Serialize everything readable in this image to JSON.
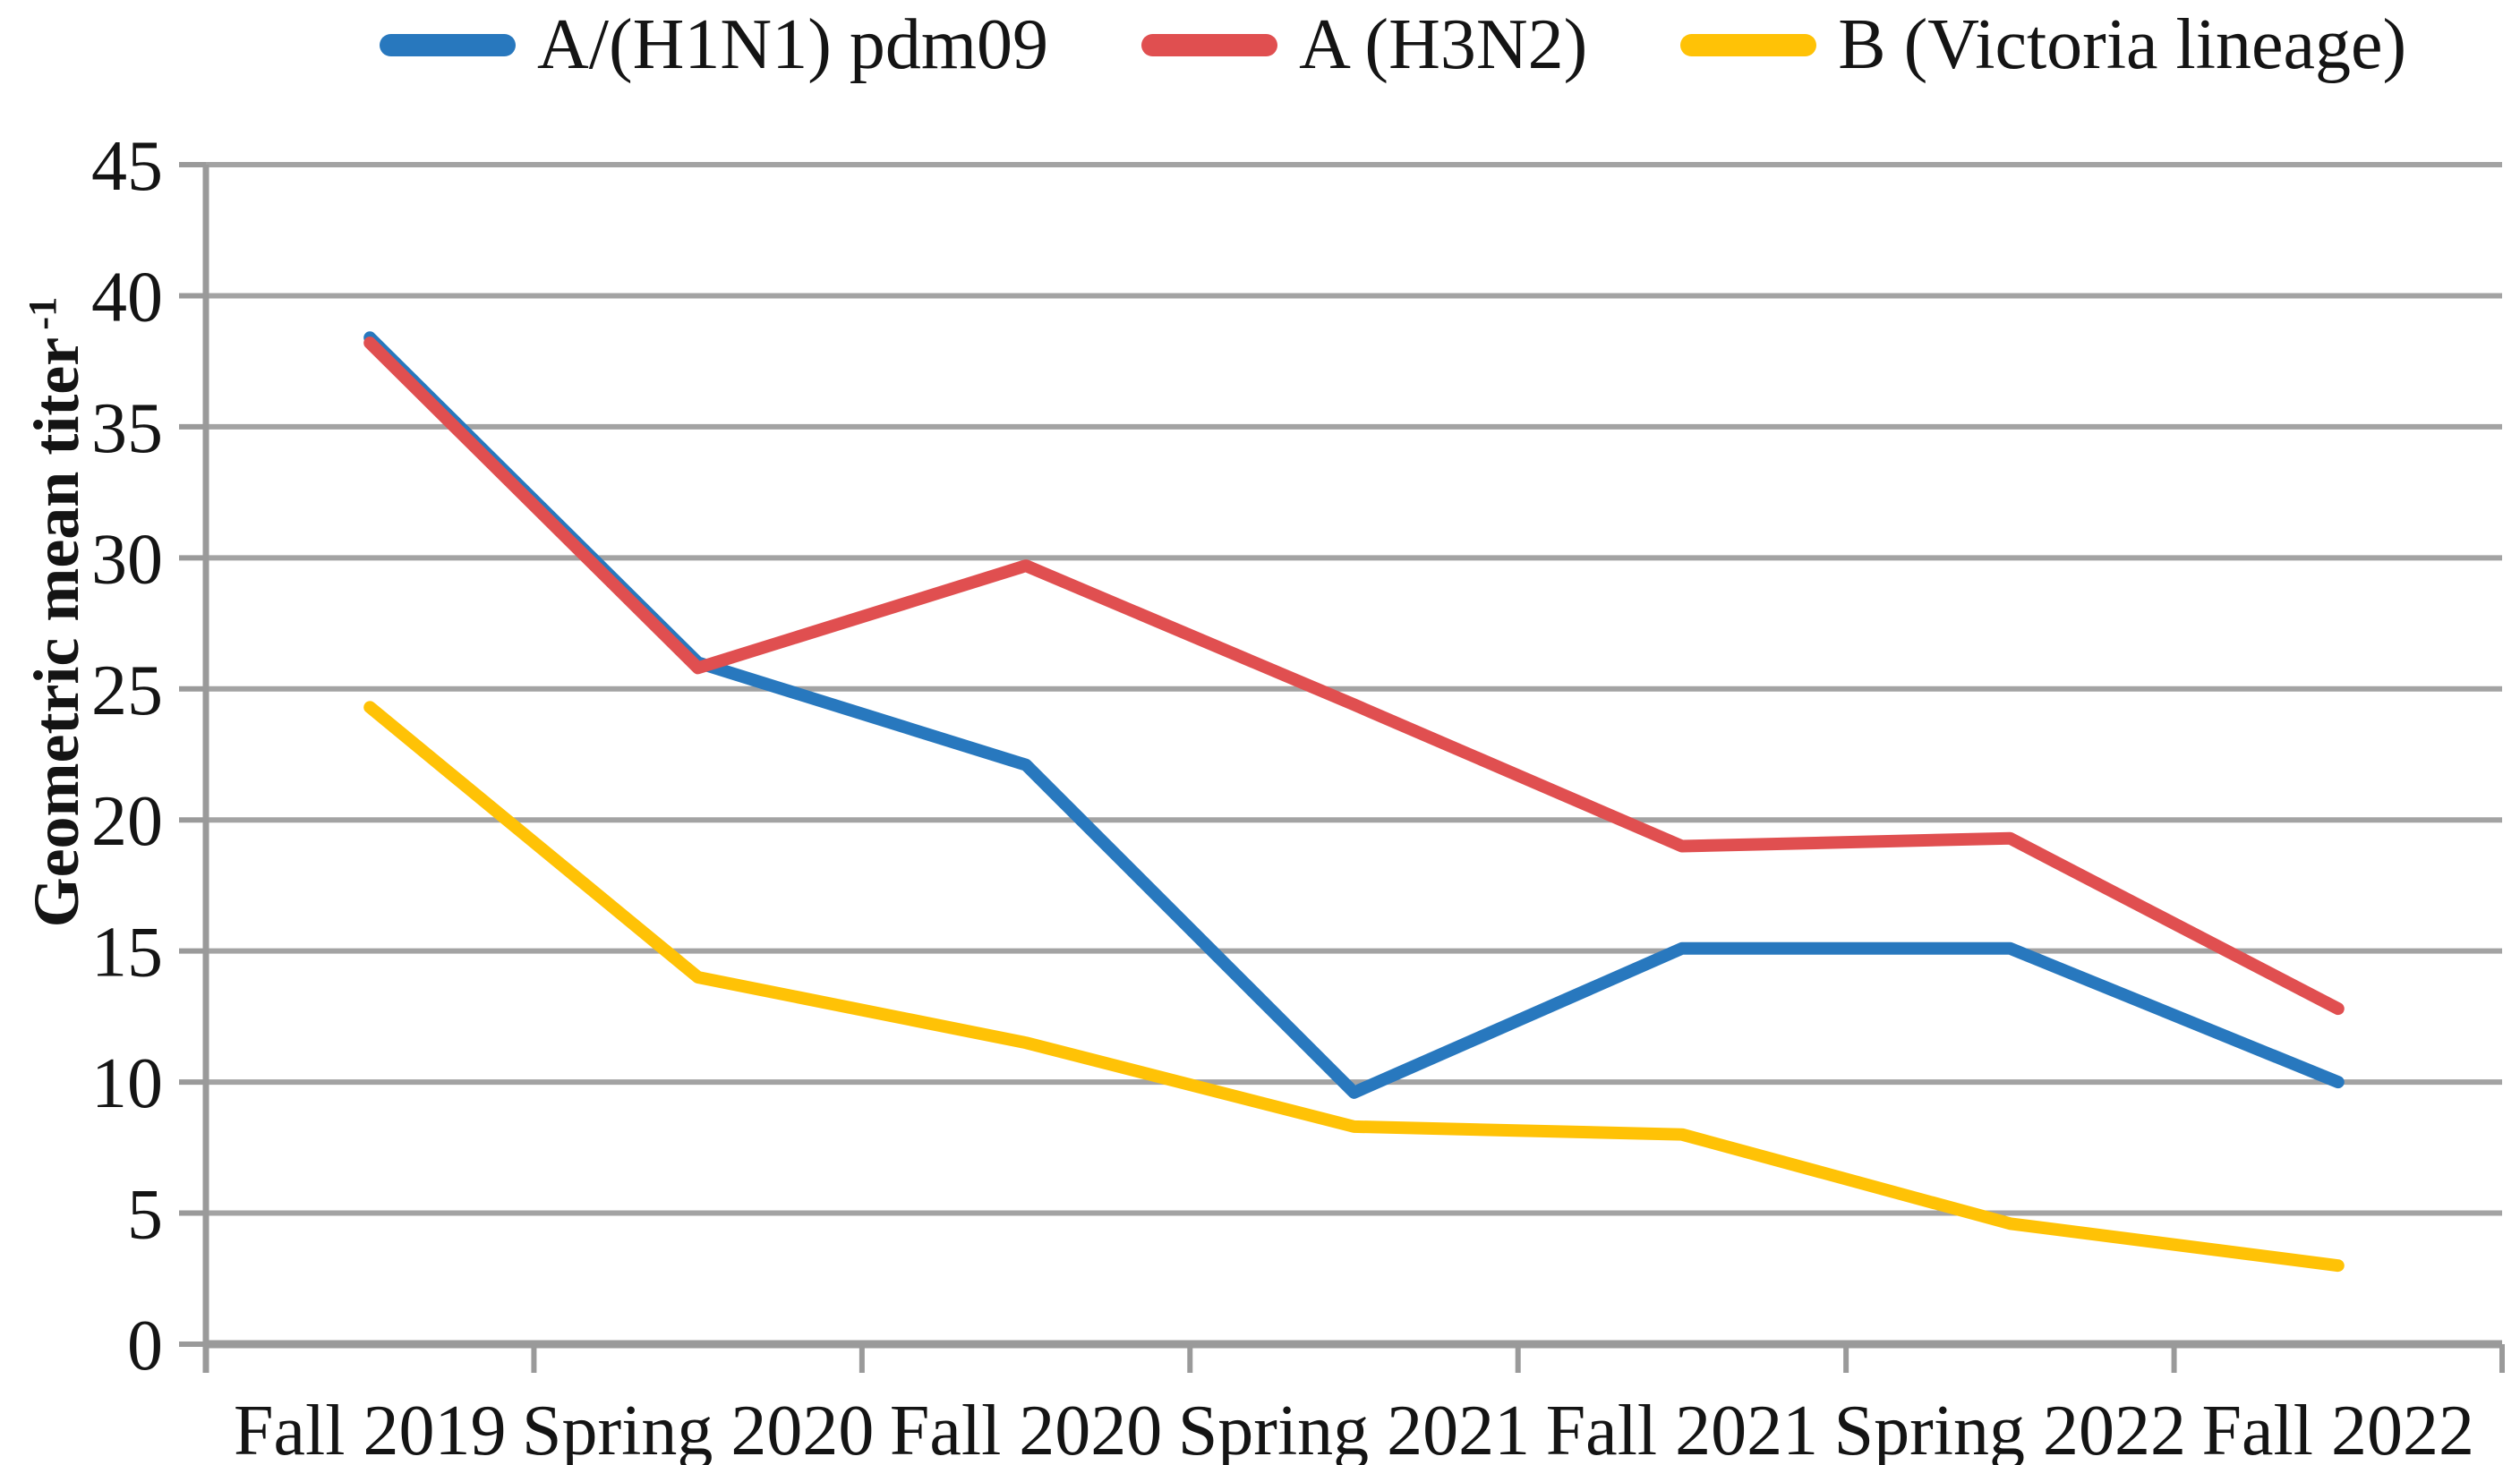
{
  "figure": {
    "background": "#ffffff",
    "legend_items": [
      "A/(H1N1) pdm09",
      "A (H3N2)",
      "B (Victoria lineage)"
    ]
  },
  "chart_data": {
    "type": "line",
    "title": "",
    "categories": [
      "Fall 2019",
      "Spring 2020",
      "Fall 2020",
      "Spring 2021",
      "Fall 2021",
      "Spring 2022",
      "Fall 2022"
    ],
    "series": [
      {
        "name": "A/(H1N1) pdm09",
        "color": "#2878BE",
        "values": [
          38.4,
          26.0,
          22.1,
          9.6,
          15.1,
          15.1,
          10.0
        ]
      },
      {
        "name": "A (H3N2)",
        "color": "#E04F50",
        "values": [
          38.2,
          25.8,
          29.7,
          24.4,
          19.0,
          19.3,
          12.8
        ]
      },
      {
        "name": "B (Victoria lineage)",
        "color": "#FFC206",
        "values": [
          24.3,
          14.0,
          11.5,
          8.3,
          8.0,
          4.6,
          3.0
        ]
      }
    ],
    "xlabel": "",
    "ylabel": "Geometric mean titer -1",
    "ylabel_text": "Geometric mean titer",
    "ylabel_superscript": "-1",
    "ylim": [
      0,
      45
    ],
    "yticks": [
      0,
      5,
      10,
      15,
      20,
      25,
      30,
      35,
      40,
      45
    ],
    "grid": "horizontal",
    "legend_position": "top",
    "line_style": "solid, round caps, no markers",
    "colors": {
      "gridline": "#A3A3A3",
      "axis": "#9A9A9A",
      "text": "#141414"
    }
  }
}
